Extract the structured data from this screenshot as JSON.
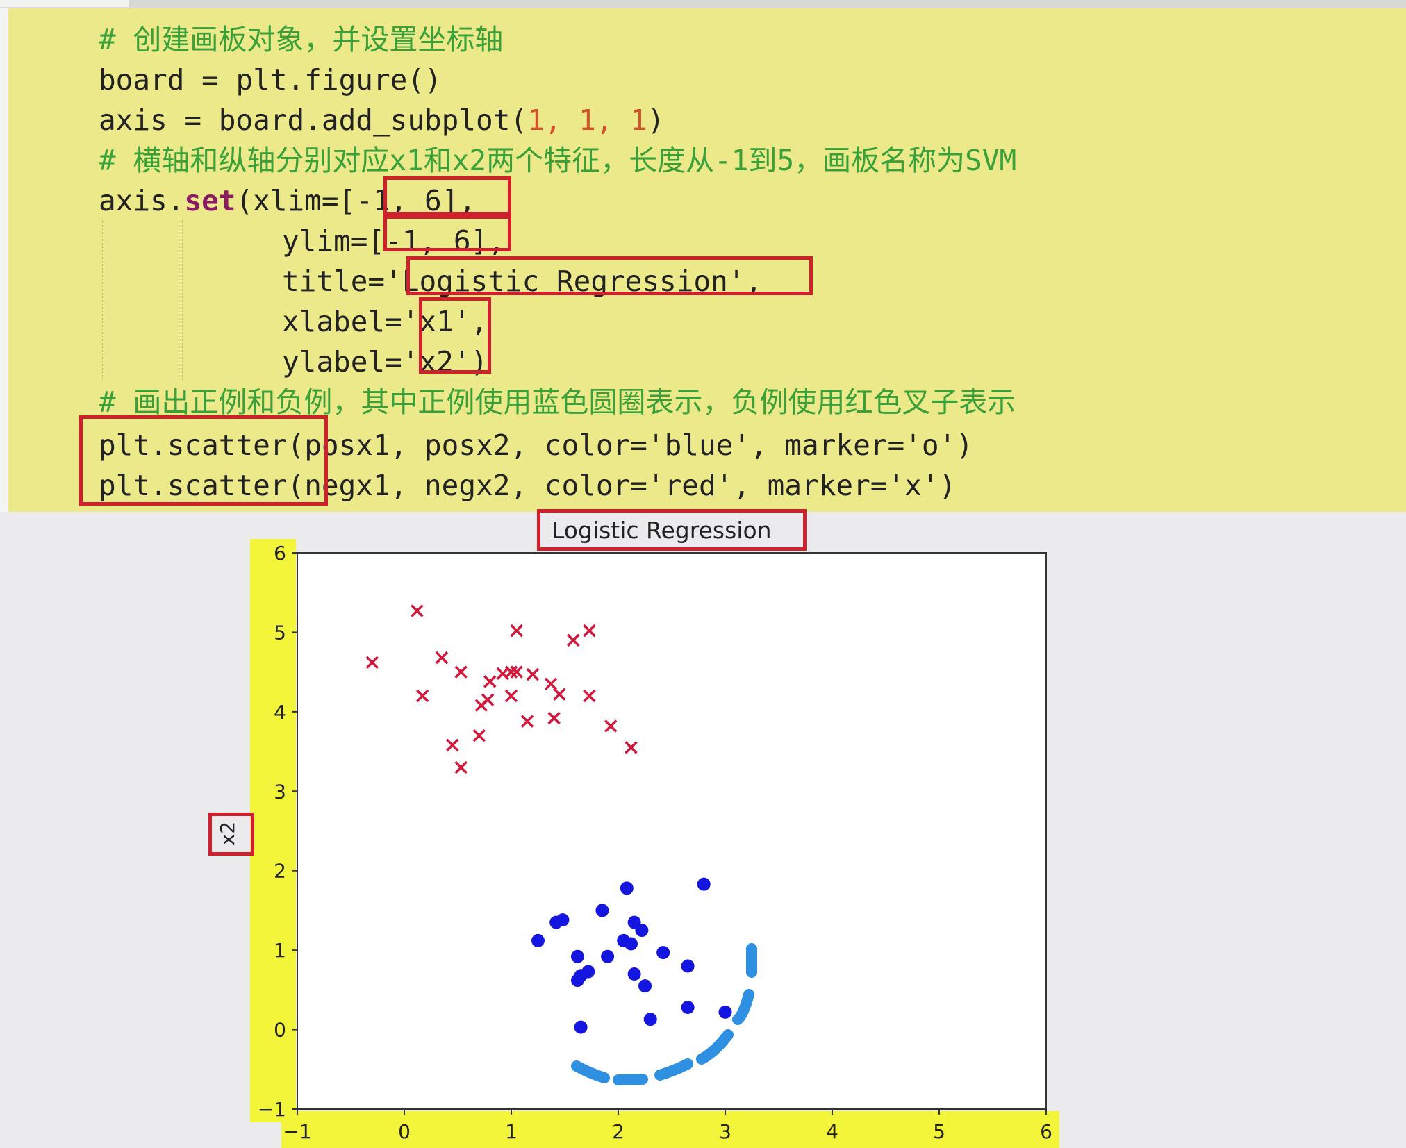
{
  "code": {
    "line1_comment": "# 创建画板对象，并设置坐标轴",
    "line2": "board = plt.figure()",
    "line3_prefix": "axis = board.add_subplot(",
    "line3_args": "1, 1, 1",
    "line3_suffix": ")",
    "line4_comment": "# 横轴和纵轴分别对应x1和x2两个特征，长度从-1到5，画板名称为SVM",
    "line5_prefix": "axis.",
    "line5_kw": "set",
    "line5_rest": "(xlim=[-1, 6],",
    "line6": "ylim=[-1, 6],",
    "line7": "title='Logistic Regression',",
    "line8": "xlabel='x1',",
    "line9": "ylabel='x2')",
    "line10_comment": "# 画出正例和负例，其中正例使用蓝色圆圈表示，负例使用红色叉子表示",
    "line11": "plt.scatter(posx1, posx2, color='blue', marker='o')",
    "line12": "plt.scatter(negx1, negx2, color='red', marker='x')"
  },
  "colors": {
    "code_bg": "#ece98a",
    "comment": "#3aa03a",
    "highlight_box": "#d0202e",
    "axis_highlight": "#f3f53a",
    "positive": "#1515e0",
    "negative": "#d3173d",
    "annotation_stroke": "#2f8fe0"
  },
  "chart_data": {
    "type": "scatter",
    "title": "Logistic Regression",
    "xlabel": "",
    "ylabel": "x2",
    "xlim": [
      -1,
      6
    ],
    "ylim": [
      -1,
      6
    ],
    "xticks": [
      "−1",
      "0",
      "1",
      "2",
      "3",
      "4",
      "5",
      "6"
    ],
    "yticks": [
      "−1",
      "0",
      "1",
      "2",
      "3",
      "4",
      "5",
      "6"
    ],
    "grid": false,
    "series": [
      {
        "marker": "x",
        "color": "red",
        "points": [
          [
            0.12,
            5.27
          ],
          [
            -0.3,
            4.62
          ],
          [
            0.35,
            4.68
          ],
          [
            0.53,
            4.5
          ],
          [
            1.05,
            5.02
          ],
          [
            1.58,
            4.9
          ],
          [
            1.73,
            5.02
          ],
          [
            0.8,
            4.38
          ],
          [
            0.92,
            4.48
          ],
          [
            1.0,
            4.5
          ],
          [
            1.05,
            4.5
          ],
          [
            1.2,
            4.47
          ],
          [
            1.37,
            4.35
          ],
          [
            0.17,
            4.2
          ],
          [
            0.78,
            4.15
          ],
          [
            0.72,
            4.08
          ],
          [
            1.0,
            4.2
          ],
          [
            1.45,
            4.22
          ],
          [
            1.73,
            4.2
          ],
          [
            1.15,
            3.88
          ],
          [
            1.4,
            3.92
          ],
          [
            1.93,
            3.82
          ],
          [
            0.7,
            3.7
          ],
          [
            0.45,
            3.58
          ],
          [
            2.12,
            3.55
          ],
          [
            0.53,
            3.3
          ]
        ]
      },
      {
        "marker": "o",
        "color": "blue",
        "points": [
          [
            2.08,
            1.78
          ],
          [
            2.8,
            1.83
          ],
          [
            1.85,
            1.5
          ],
          [
            1.48,
            1.38
          ],
          [
            1.42,
            1.35
          ],
          [
            2.15,
            1.35
          ],
          [
            2.22,
            1.25
          ],
          [
            1.25,
            1.12
          ],
          [
            2.05,
            1.12
          ],
          [
            2.12,
            1.08
          ],
          [
            1.62,
            0.92
          ],
          [
            1.9,
            0.92
          ],
          [
            2.42,
            0.97
          ],
          [
            2.65,
            0.8
          ],
          [
            1.72,
            0.73
          ],
          [
            1.65,
            0.68
          ],
          [
            2.15,
            0.7
          ],
          [
            1.62,
            0.62
          ],
          [
            2.25,
            0.55
          ],
          [
            2.65,
            0.28
          ],
          [
            3.0,
            0.22
          ],
          [
            2.3,
            0.13
          ],
          [
            1.65,
            0.03
          ]
        ]
      }
    ]
  }
}
